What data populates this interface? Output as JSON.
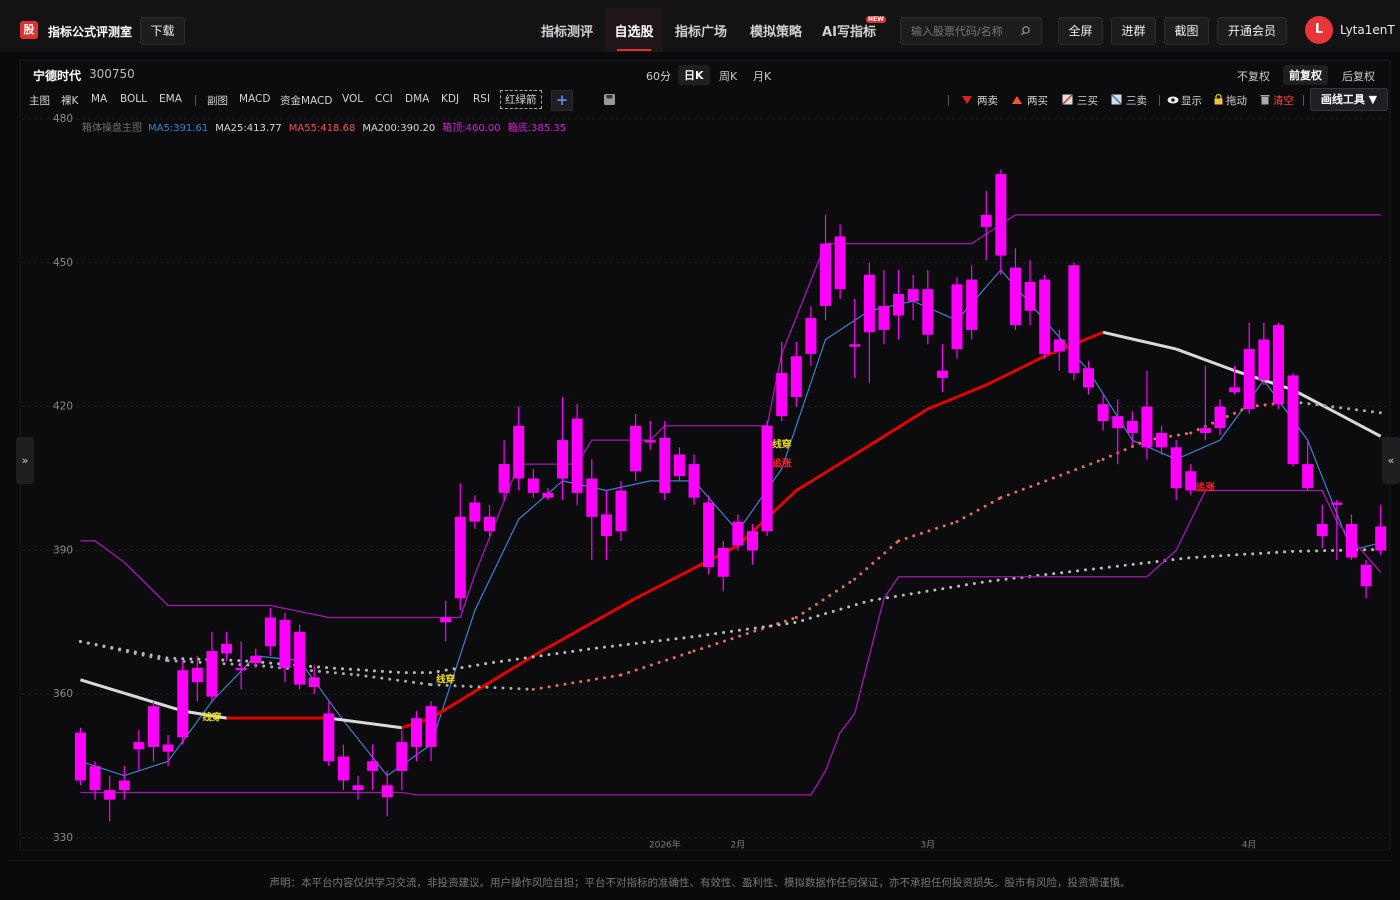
{
  "header": {
    "logo": "股",
    "brand": "指标公式评测室",
    "download": "下载",
    "nav": [
      "指标测评",
      "自选股",
      "指标广场",
      "模拟策略",
      "AI写指标"
    ],
    "badge": "NEW",
    "search_placeholder": "输入股票代码/名称",
    "buttons": [
      "全屏",
      "进群",
      "截图",
      "开通会员"
    ],
    "avatar": "L",
    "username": "Lyta1enT"
  },
  "toolbar": {
    "stock_name": "宁德时代",
    "stock_code": "300750",
    "periods": [
      "60分",
      "日K",
      "周K",
      "月K"
    ],
    "adjust": [
      "不复权",
      "前复权",
      "后复权"
    ],
    "main_label": "主图",
    "main_items": [
      "裸K",
      "MA",
      "BOLL",
      "EMA"
    ],
    "sub_label": "副图",
    "sub_items": [
      "MACD",
      "资金MACD",
      "VOL",
      "CCI",
      "DMA",
      "KDJ",
      "RSI",
      "红绿箭"
    ],
    "add": "+",
    "draw_items": [
      "两卖",
      "两买",
      "三买",
      "三卖",
      "显示",
      "拖动",
      "清空"
    ],
    "draw_tool": "画线工具 ▼"
  },
  "side": {
    "left": "»",
    "right": "«"
  },
  "chart_data": {
    "type": "candlestick",
    "title": "箱体操盘主图",
    "color": "#ff00ff",
    "open": [
      352,
      345,
      340,
      340,
      348.5,
      349,
      349.5,
      351,
      365.5,
      359.5,
      368.5,
      365.5,
      366.5,
      370,
      375.5,
      373,
      363.5,
      356,
      347,
      341,
      344,
      341,
      344,
      349,
      349,
      375,
      380,
      396,
      397,
      402,
      405,
      405,
      402,
      405,
      402,
      405,
      397.5,
      394,
      406.5,
      413,
      413.5,
      405.5,
      408,
      400,
      390.5,
      391,
      394,
      394,
      418,
      422,
      431,
      441,
      444.5,
      433,
      435.5,
      441,
      439,
      442,
      444.5,
      427.5,
      432,
      436,
      457.5,
      468.5,
      449,
      440,
      446.5,
      434,
      449.5,
      428,
      420.5,
      418,
      417,
      411.5,
      414.5,
      411.5,
      406.5,
      414.5,
      415.5,
      423,
      419.5,
      425.5,
      437,
      426.5,
      408,
      395.5,
      399.5,
      395.5,
      387,
      390
    ],
    "high": [
      353,
      346,
      343,
      345,
      352.5,
      358.5,
      351.5,
      367,
      368,
      373,
      373,
      371,
      369.5,
      378,
      377,
      374.5,
      366,
      358.5,
      349.5,
      343,
      349.5,
      344,
      352.5,
      356.5,
      358.5,
      379.5,
      404,
      401.5,
      399.5,
      413,
      420,
      407,
      403,
      422,
      420.5,
      409,
      402.5,
      404.5,
      418.5,
      417,
      417,
      411.5,
      410,
      401.5,
      392,
      397.5,
      395.5,
      417,
      433.5,
      433.5,
      441,
      460,
      458,
      442.5,
      450,
      448.5,
      448.5,
      447.5,
      448.5,
      433,
      447,
      449.5,
      465,
      469.5,
      453,
      450.5,
      447.5,
      436,
      450,
      429.5,
      422.5,
      421.5,
      419,
      427.5,
      416,
      413,
      408,
      428.5,
      421.5,
      428.5,
      437.5,
      437.5,
      437.5,
      427,
      413,
      399.5,
      400.5,
      397.5,
      388,
      399.5
    ],
    "low": [
      341,
      338,
      333.5,
      338,
      344,
      346,
      345,
      349.5,
      358.5,
      358.5,
      367,
      361,
      365.5,
      368,
      362.5,
      361,
      360,
      345,
      340,
      338,
      340,
      334.5,
      340,
      346,
      346,
      371,
      377.5,
      394.5,
      393,
      400.5,
      402.5,
      401,
      400.5,
      400.5,
      399.5,
      388,
      388,
      392,
      404.5,
      411,
      400.5,
      404.5,
      399.5,
      385,
      381.5,
      390,
      387,
      393,
      417,
      420,
      428.5,
      438,
      442.5,
      426,
      425,
      433,
      434,
      438,
      433,
      423,
      430,
      434,
      450.5,
      447.5,
      436,
      437,
      430,
      427.5,
      425.5,
      422.5,
      415,
      408,
      412,
      409,
      410,
      400.5,
      401.5,
      413,
      414,
      422.5,
      418.5,
      424.5,
      419.5,
      407.5,
      402.5,
      390.5,
      388,
      388,
      380,
      389
    ],
    "close": [
      342,
      340,
      338,
      342,
      350,
      357.5,
      348,
      365,
      362.5,
      369,
      370.5,
      365,
      368,
      376,
      365.5,
      362,
      361.5,
      346,
      342,
      340,
      346,
      338.5,
      350,
      355,
      357.5,
      376,
      397,
      400,
      394,
      408,
      416,
      402,
      401,
      413,
      417.5,
      397,
      393,
      402.5,
      416,
      412.5,
      402,
      410,
      401,
      386.5,
      384.5,
      396,
      390,
      416,
      427,
      430.5,
      438.5,
      454,
      455.5,
      432.5,
      447.5,
      436,
      443.5,
      444.5,
      435,
      426,
      445.5,
      446.5,
      460,
      451.5,
      437,
      446,
      431,
      431.5,
      427,
      424,
      417,
      415.5,
      414.5,
      420,
      411.5,
      403,
      402.5,
      415.5,
      420,
      424,
      432,
      434,
      420.5,
      408,
      403,
      393,
      400,
      388.5,
      382.5,
      395
    ],
    "lines": [
      {
        "label": "MA5:391.61",
        "color": "#3f7fcc",
        "style": "solid",
        "width": 1.2,
        "x": [
          0,
          3,
          6,
          9,
          12,
          15,
          18,
          21,
          24,
          27,
          30,
          33,
          36,
          39,
          42,
          45,
          48,
          51,
          54,
          57,
          60,
          63,
          66,
          69,
          72,
          75,
          78,
          81,
          84,
          87,
          89
        ],
        "values": [
          346,
          343,
          346,
          358.5,
          368,
          367,
          354.5,
          343,
          349.5,
          377.5,
          396.5,
          404.5,
          402.5,
          404.5,
          404.5,
          394,
          407,
          434,
          440,
          442,
          438,
          448.5,
          438,
          427.5,
          413,
          409,
          413,
          425.5,
          413,
          390,
          391.6
        ]
      },
      {
        "label": "MA25:413.77",
        "color": "#d9d9d9",
        "rise_color": "#e00000",
        "style": "solid",
        "width": 3,
        "x": [
          0,
          7,
          10,
          17,
          22,
          24,
          31,
          38,
          45,
          49,
          53,
          58,
          62,
          66,
          70,
          75,
          79,
          83,
          89
        ],
        "values": [
          363,
          356.5,
          355,
          355,
          353,
          355,
          368,
          380,
          391,
          402.5,
          410,
          419.5,
          424.5,
          430.5,
          435.5,
          432,
          427.5,
          423.5,
          413.8
        ]
      },
      {
        "label": "MA55:418.68",
        "color": "#aaaaaa",
        "rise_color": "#e0705a",
        "label_color": "#f05050",
        "style": "dotted",
        "width": 3,
        "x": [
          0,
          6,
          12,
          19,
          24,
          31,
          37,
          42,
          49,
          53,
          56,
          60,
          63,
          70,
          73,
          76,
          80,
          83,
          89
        ],
        "values": [
          371,
          367,
          366,
          364,
          362,
          361,
          364,
          369,
          376,
          384,
          392,
          396,
          401,
          409,
          413,
          414.5,
          420,
          421,
          418.7
        ]
      },
      {
        "label": "MA200:390.20",
        "color": "#bbbbbb",
        "label_color": "#d9d9d9",
        "style": "dotted",
        "width": 3,
        "x": [
          0,
          6,
          11,
          17,
          22,
          24,
          28,
          35,
          42,
          49,
          54,
          58,
          62,
          69,
          76,
          83,
          89
        ],
        "values": [
          371,
          367.5,
          367,
          365.5,
          364.5,
          364.5,
          366.5,
          369.5,
          372,
          375,
          379.5,
          381.5,
          383.5,
          386,
          388.5,
          389.8,
          390.2
        ]
      },
      {
        "label": "箱顶:460.00",
        "color": "#a416b4",
        "label_color": "#d21ed2",
        "style": "solid",
        "width": 1.3,
        "x": [
          0,
          1,
          3,
          6,
          13,
          17,
          26,
          27,
          30,
          34,
          35,
          39,
          40,
          47,
          48,
          51,
          61,
          64,
          89
        ],
        "values": [
          392,
          392,
          387.5,
          378.5,
          378.5,
          376,
          376,
          385,
          408,
          408,
          413,
          413,
          416,
          416,
          431,
          454,
          454,
          460,
          460
        ]
      },
      {
        "label": "箱底:385.35",
        "color": "#a416b4",
        "label_color": "#d21ed2",
        "style": "solid",
        "width": 1.3,
        "x": [
          0,
          22,
          23,
          50,
          51,
          52,
          53,
          55,
          56,
          73,
          75,
          77,
          85,
          86,
          89
        ],
        "values": [
          339.5,
          339.5,
          339,
          339,
          344,
          352,
          356,
          380,
          384.5,
          384.5,
          390,
          402.5,
          402.5,
          396,
          385.4
        ]
      }
    ],
    "annotations": [
      {
        "text": "线穿",
        "x": 9,
        "y": 355,
        "color": "#f0e020"
      },
      {
        "text": "线穿",
        "x": 25,
        "y": 363,
        "color": "#f0e020"
      },
      {
        "text": "线穿",
        "x": 48,
        "y": 412,
        "color": "#f0e020"
      },
      {
        "text": "追涨",
        "x": 48,
        "y": 408,
        "color": "#ff2020"
      },
      {
        "text": "追涨",
        "x": 77,
        "y": 403,
        "color": "#ff2020"
      }
    ],
    "xlim": [
      -4,
      89.5
    ],
    "xticks": [
      {
        "value": 40,
        "label": "2026年"
      },
      {
        "value": 45,
        "label": "2月"
      },
      {
        "value": 58,
        "label": "3月"
      },
      {
        "value": 80,
        "label": "4月"
      }
    ],
    "ylim": [
      330,
      480
    ],
    "yticks": [
      330,
      360,
      390,
      420,
      450,
      480
    ],
    "grid": true
  },
  "footer": {
    "disclaimer": "声明：本平台内容仅供学习交流，非投资建议。用户操作风险自担；平台不对指标的准确性、有效性、盈利性、模拟数据作任何保证，亦不承担任何投资损失。股市有风险，投资需谨慎。"
  }
}
